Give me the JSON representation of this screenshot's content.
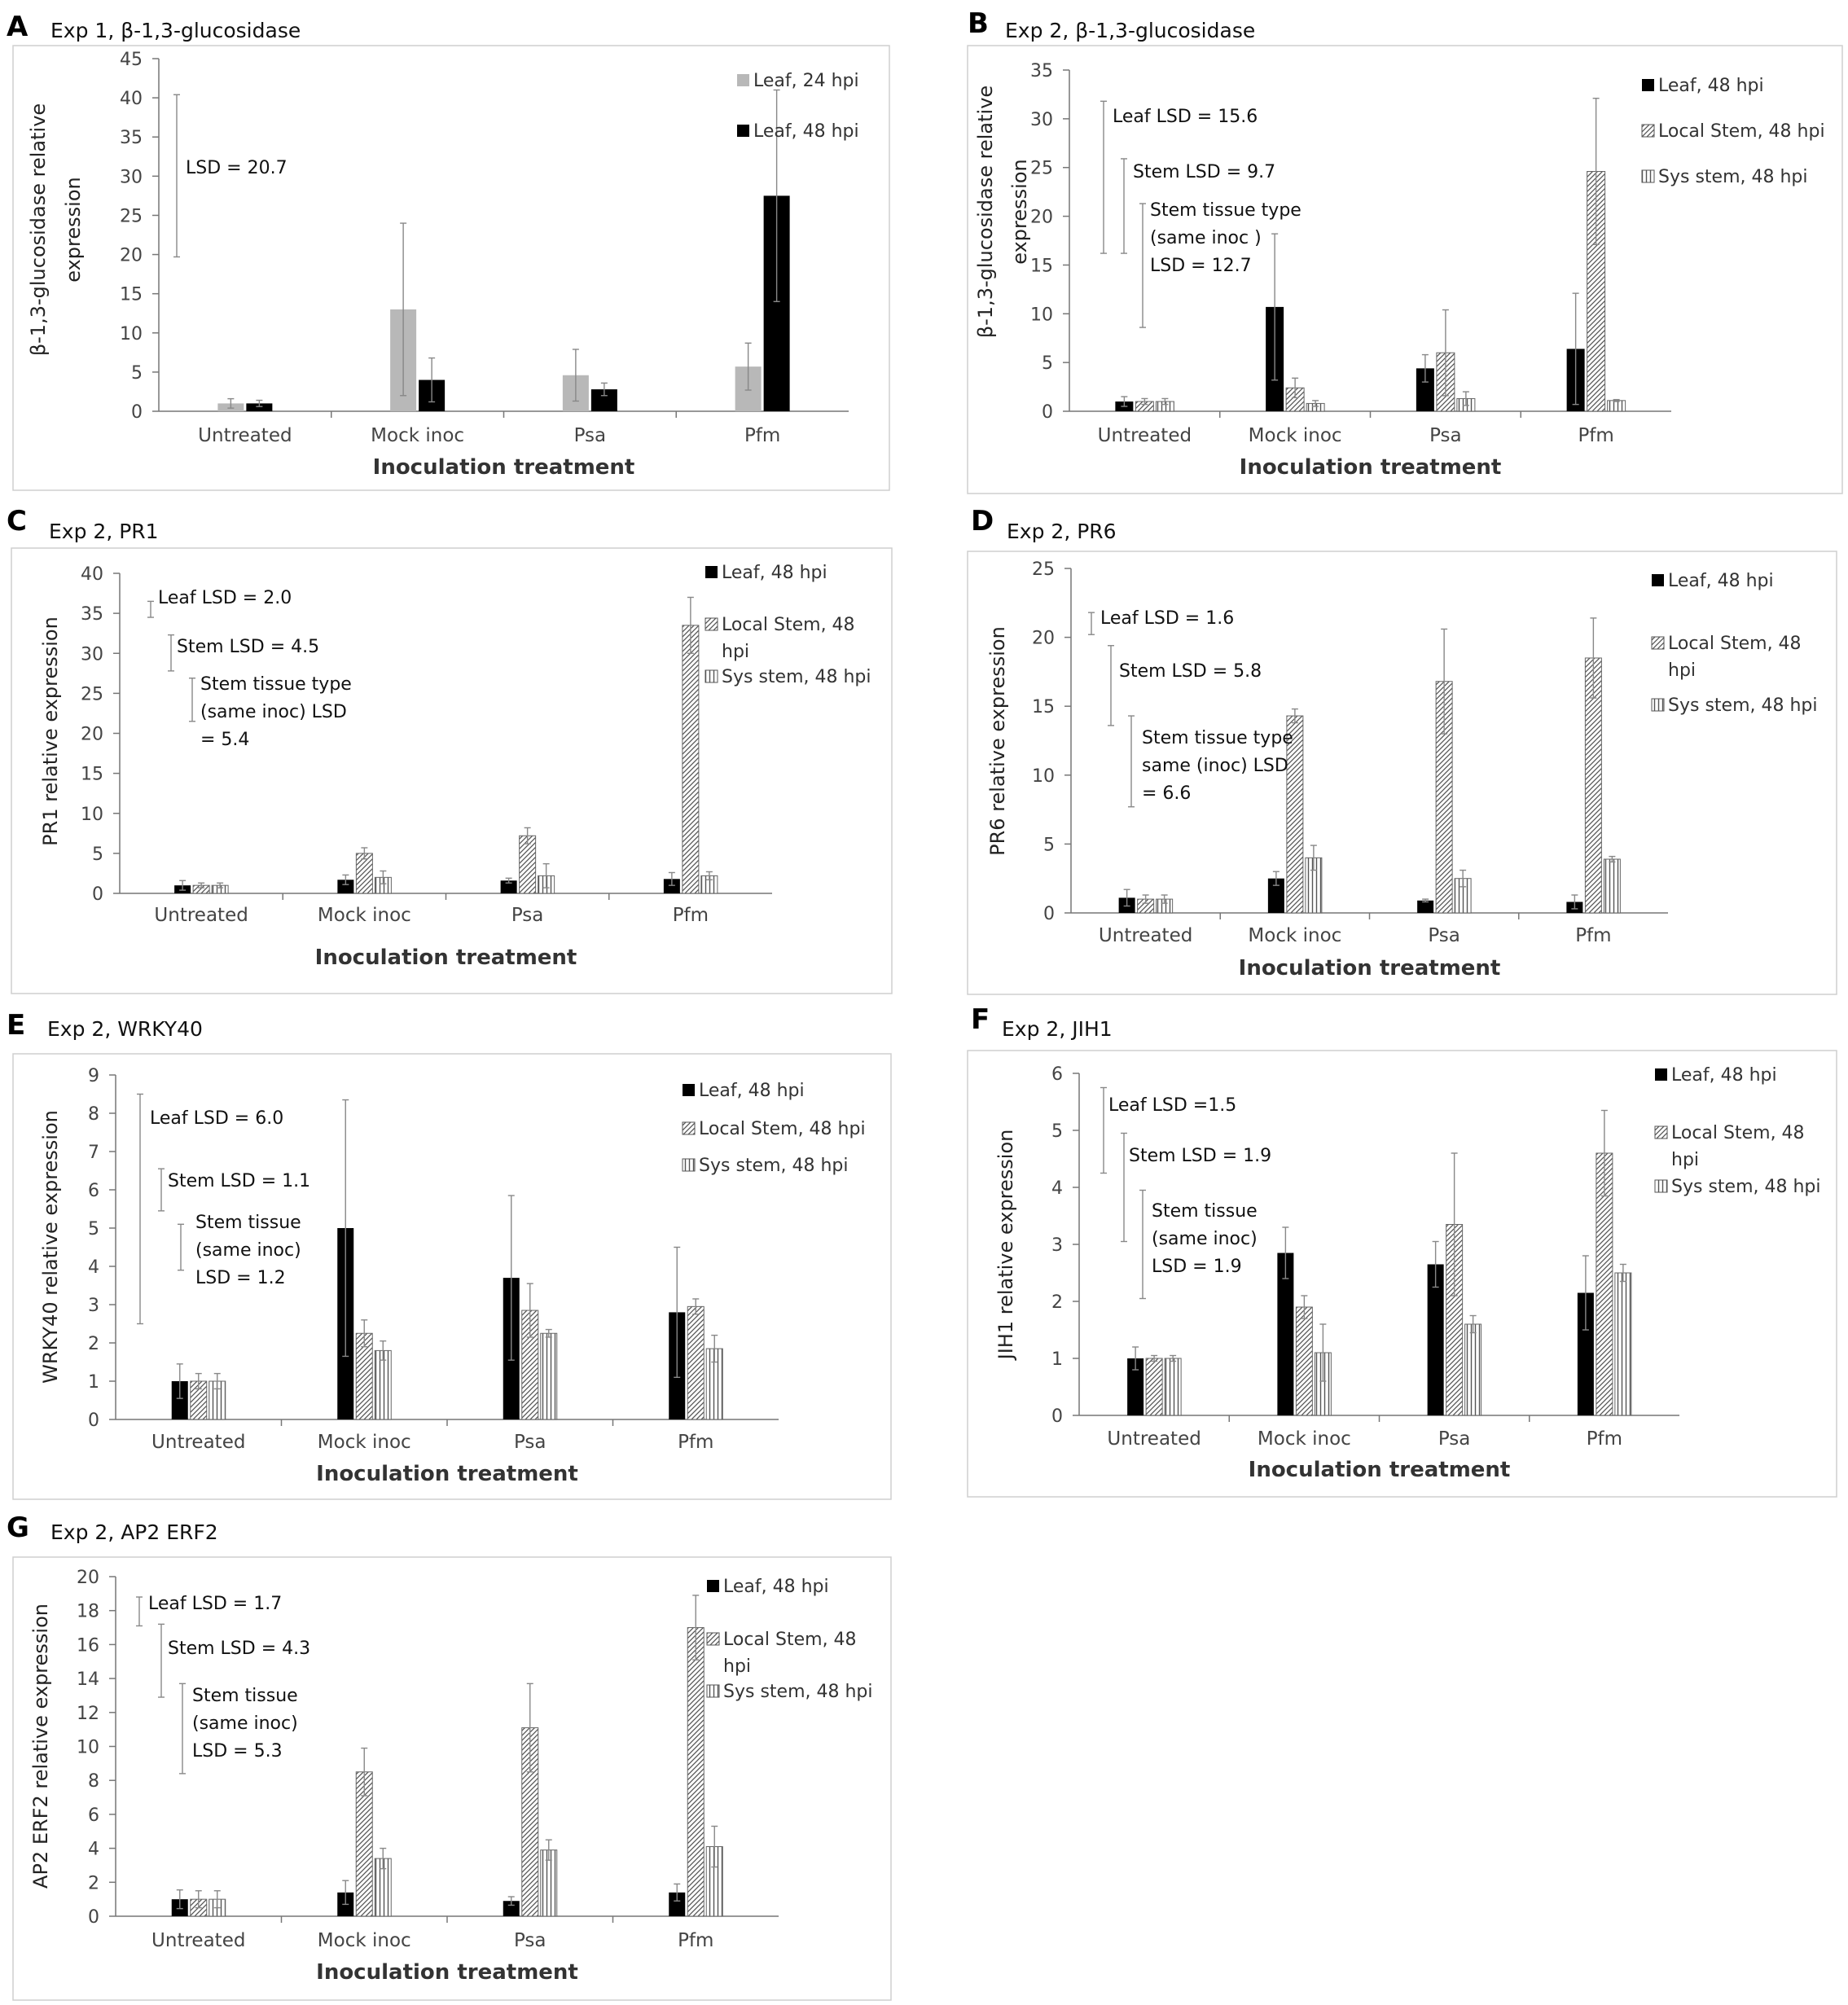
{
  "chart_data": [
    {
      "type": "bar",
      "panel_letter": "A",
      "title": "Exp 1, β-1,3-glucosidase",
      "ylabel": [
        "β-1,3-glucosidase relative",
        "expression"
      ],
      "xlabel": "Inoculation treatment",
      "categories": [
        "Untreated",
        "Mock inoc",
        "Psa",
        "Pfm"
      ],
      "ylim": [
        0,
        45
      ],
      "yticks": [
        0,
        5,
        10,
        15,
        20,
        25,
        30,
        35,
        40,
        45
      ],
      "series": [
        {
          "name": "Leaf, 24 hpi",
          "pattern": "gray",
          "values": [
            1.0,
            13.0,
            4.6,
            5.7
          ],
          "errors": [
            0.6,
            11.0,
            3.3,
            3.0
          ]
        },
        {
          "name": "Leaf, 48 hpi",
          "pattern": "black",
          "values": [
            1.0,
            4.0,
            2.8,
            27.5
          ],
          "errors": [
            0.4,
            2.8,
            0.8,
            13.5
          ]
        }
      ],
      "annotations": [
        {
          "lines": [
            "LSD = 20.7"
          ],
          "lsd_low": 19.7,
          "lsd_high": 40.4
        }
      ]
    },
    {
      "type": "bar",
      "panel_letter": "B",
      "title": "Exp 2, β-1,3-glucosidase",
      "ylabel": [
        "β-1,3-glucosidase relative",
        "expression"
      ],
      "xlabel": "Inoculation treatment",
      "categories": [
        "Untreated",
        "Mock inoc",
        "Psa",
        "Pfm"
      ],
      "ylim": [
        0,
        35
      ],
      "yticks": [
        0,
        5,
        10,
        15,
        20,
        25,
        30,
        35
      ],
      "series": [
        {
          "name": "Leaf, 48 hpi",
          "pattern": "black",
          "values": [
            1.0,
            10.7,
            4.4,
            6.4
          ],
          "errors": [
            0.5,
            7.5,
            1.4,
            5.7
          ]
        },
        {
          "name": "Local Stem, 48 hpi",
          "pattern": "hatch",
          "values": [
            1.0,
            2.4,
            6.0,
            24.6
          ],
          "errors": [
            0.3,
            1.0,
            4.4,
            7.5
          ]
        },
        {
          "name": "Sys stem, 48 hpi",
          "pattern": "vline",
          "values": [
            1.0,
            0.8,
            1.3,
            1.1
          ],
          "errors": [
            0.3,
            0.3,
            0.7,
            0.1
          ]
        }
      ],
      "annotations": [
        {
          "lines": [
            "Leaf LSD = 15.6"
          ],
          "lsd_low": 16.2,
          "lsd_high": 31.8
        },
        {
          "lines": [
            "Stem LSD = 9.7"
          ],
          "lsd_low": 16.2,
          "lsd_high": 25.9
        },
        {
          "lines": [
            "Stem tissue type",
            "(same inoc )",
            "LSD  = 12.7"
          ],
          "lsd_low": 8.6,
          "lsd_high": 21.3
        }
      ]
    },
    {
      "type": "bar",
      "panel_letter": "C",
      "title": "Exp 2, PR1",
      "ylabel": [
        "PR1 relative expression"
      ],
      "xlabel": "Inoculation treatment",
      "categories": [
        "Untreated",
        "Mock inoc",
        "Psa",
        "Pfm"
      ],
      "ylim": [
        0,
        40
      ],
      "yticks": [
        0,
        5,
        10,
        15,
        20,
        25,
        30,
        35,
        40
      ],
      "series": [
        {
          "name": "Leaf, 48 hpi",
          "pattern": "black",
          "values": [
            1.0,
            1.7,
            1.6,
            1.8
          ],
          "errors": [
            0.6,
            0.6,
            0.3,
            0.8
          ]
        },
        {
          "name": "Local Stem, 48 hpi",
          "pattern": "hatch",
          "values": [
            1.0,
            5.0,
            7.2,
            33.5
          ],
          "errors": [
            0.3,
            0.7,
            1.0,
            3.5
          ]
        },
        {
          "name": "Sys stem, 48 hpi",
          "pattern": "vline",
          "values": [
            1.0,
            2.0,
            2.2,
            2.2
          ],
          "errors": [
            0.3,
            0.8,
            1.5,
            0.5
          ]
        }
      ],
      "annotations": [
        {
          "lines": [
            "Leaf LSD = 2.0"
          ],
          "lsd_low": 34.5,
          "lsd_high": 36.5
        },
        {
          "lines": [
            "Stem LSD = 4.5"
          ],
          "lsd_low": 27.8,
          "lsd_high": 32.3
        },
        {
          "lines": [
            "Stem tissue type",
            "(same inoc) LSD",
            "= 5.4"
          ],
          "lsd_low": 21.5,
          "lsd_high": 26.9
        }
      ]
    },
    {
      "type": "bar",
      "panel_letter": "D",
      "title": "Exp 2, PR6",
      "ylabel": [
        "PR6 relative expression"
      ],
      "xlabel": "Inoculation treatment",
      "categories": [
        "Untreated",
        "Mock inoc",
        "Psa",
        "Pfm"
      ],
      "ylim": [
        0,
        25
      ],
      "yticks": [
        0,
        5,
        10,
        15,
        20,
        25
      ],
      "series": [
        {
          "name": "Leaf, 48 hpi",
          "pattern": "black",
          "values": [
            1.1,
            2.5,
            0.9,
            0.8
          ],
          "errors": [
            0.6,
            0.5,
            0.1,
            0.5
          ]
        },
        {
          "name": "Local Stem, 48 hpi",
          "pattern": "hatch",
          "values": [
            1.0,
            14.3,
            16.8,
            18.5
          ],
          "errors": [
            0.3,
            0.5,
            3.8,
            2.9
          ]
        },
        {
          "name": "Sys stem, 48 hpi",
          "pattern": "vline",
          "values": [
            1.0,
            4.0,
            2.5,
            3.9
          ],
          "errors": [
            0.3,
            0.9,
            0.6,
            0.2
          ]
        }
      ],
      "annotations": [
        {
          "lines": [
            "Leaf LSD = 1.6"
          ],
          "lsd_low": 20.2,
          "lsd_high": 21.8
        },
        {
          "lines": [
            "Stem LSD = 5.8"
          ],
          "lsd_low": 13.6,
          "lsd_high": 19.4
        },
        {
          "lines": [
            "Stem tissue type",
            "same (inoc) LSD",
            "= 6.6"
          ],
          "lsd_low": 7.7,
          "lsd_high": 14.3
        }
      ]
    },
    {
      "type": "bar",
      "panel_letter": "E",
      "title": "Exp 2, WRKY40",
      "ylabel": [
        "WRKY40 relative expression"
      ],
      "xlabel": "Inoculation treatment",
      "categories": [
        "Untreated",
        "Mock inoc",
        "Psa",
        "Pfm"
      ],
      "ylim": [
        0,
        9
      ],
      "yticks": [
        0,
        1,
        2,
        3,
        4,
        5,
        6,
        7,
        8,
        9
      ],
      "series": [
        {
          "name": "Leaf, 48 hpi",
          "pattern": "black",
          "values": [
            1.0,
            5.0,
            3.7,
            2.8
          ],
          "errors": [
            0.45,
            3.35,
            2.15,
            1.7
          ]
        },
        {
          "name": "Local Stem, 48 hpi",
          "pattern": "hatch",
          "values": [
            1.0,
            2.25,
            2.85,
            2.95
          ],
          "errors": [
            0.2,
            0.35,
            0.7,
            0.2
          ]
        },
        {
          "name": "Sys stem, 48 hpi",
          "pattern": "vline",
          "values": [
            1.0,
            1.8,
            2.25,
            1.85
          ],
          "errors": [
            0.2,
            0.25,
            0.1,
            0.35
          ]
        }
      ],
      "annotations": [
        {
          "lines": [
            "Leaf LSD = 6.0"
          ],
          "lsd_low": 2.5,
          "lsd_high": 8.5
        },
        {
          "lines": [
            "Stem LSD = 1.1"
          ],
          "lsd_low": 5.45,
          "lsd_high": 6.55
        },
        {
          "lines": [
            "Stem tissue",
            "(same inoc)",
            "LSD = 1.2"
          ],
          "lsd_low": 3.9,
          "lsd_high": 5.1
        }
      ]
    },
    {
      "type": "bar",
      "panel_letter": "F",
      "title": "Exp 2, JIH1",
      "ylabel": [
        "JIH1 relative expression"
      ],
      "xlabel": "Inoculation treatment",
      "categories": [
        "Untreated",
        "Mock inoc",
        "Psa",
        "Pfm"
      ],
      "ylim": [
        0,
        6
      ],
      "yticks": [
        0,
        1,
        2,
        3,
        4,
        5,
        6
      ],
      "series": [
        {
          "name": "Leaf, 48 hpi",
          "pattern": "black",
          "values": [
            1.0,
            2.85,
            2.65,
            2.15
          ],
          "errors": [
            0.2,
            0.45,
            0.4,
            0.65
          ]
        },
        {
          "name": "Local Stem, 48 hpi",
          "pattern": "hatch",
          "values": [
            1.0,
            1.9,
            3.35,
            4.6
          ],
          "errors": [
            0.05,
            0.2,
            1.25,
            0.75
          ]
        },
        {
          "name": "Sys stem, 48 hpi",
          "pattern": "vline",
          "values": [
            1.0,
            1.1,
            1.6,
            2.5
          ],
          "errors": [
            0.05,
            0.5,
            0.15,
            0.15
          ]
        }
      ],
      "annotations": [
        {
          "lines": [
            "Leaf LSD =1.5"
          ],
          "lsd_low": 4.25,
          "lsd_high": 5.75
        },
        {
          "lines": [
            "Stem LSD = 1.9"
          ],
          "lsd_low": 3.05,
          "lsd_high": 4.95
        },
        {
          "lines": [
            "Stem tissue",
            "(same inoc)",
            "LSD = 1.9"
          ],
          "lsd_low": 2.05,
          "lsd_high": 3.95
        }
      ]
    },
    {
      "type": "bar",
      "panel_letter": "G",
      "title": "Exp 2, AP2 ERF2",
      "ylabel": [
        "AP2 ERF2 relative expression"
      ],
      "xlabel": "Inoculation treatment",
      "categories": [
        "Untreated",
        "Mock inoc",
        "Psa",
        "Pfm"
      ],
      "ylim": [
        0,
        20
      ],
      "yticks": [
        0,
        2,
        4,
        6,
        8,
        10,
        12,
        14,
        16,
        18,
        20
      ],
      "series": [
        {
          "name": "Leaf, 48 hpi",
          "pattern": "black",
          "values": [
            1.0,
            1.4,
            0.9,
            1.4
          ],
          "errors": [
            0.55,
            0.7,
            0.25,
            0.5
          ]
        },
        {
          "name": "Local Stem, 48 hpi",
          "pattern": "hatch",
          "values": [
            1.0,
            8.5,
            11.1,
            17.0
          ],
          "errors": [
            0.5,
            1.4,
            2.6,
            1.9
          ]
        },
        {
          "name": "Sys stem, 48 hpi",
          "pattern": "vline",
          "values": [
            1.0,
            3.4,
            3.9,
            4.1
          ],
          "errors": [
            0.5,
            0.6,
            0.6,
            1.2
          ]
        }
      ],
      "annotations": [
        {
          "lines": [
            "Leaf LSD = 1.7"
          ],
          "lsd_low": 17.1,
          "lsd_high": 18.8
        },
        {
          "lines": [
            "Stem LSD = 4.3"
          ],
          "lsd_low": 12.9,
          "lsd_high": 17.2
        },
        {
          "lines": [
            "Stem tissue",
            "(same inoc)",
            "LSD = 5.3"
          ],
          "lsd_low": 8.4,
          "lsd_high": 13.7
        }
      ]
    }
  ]
}
